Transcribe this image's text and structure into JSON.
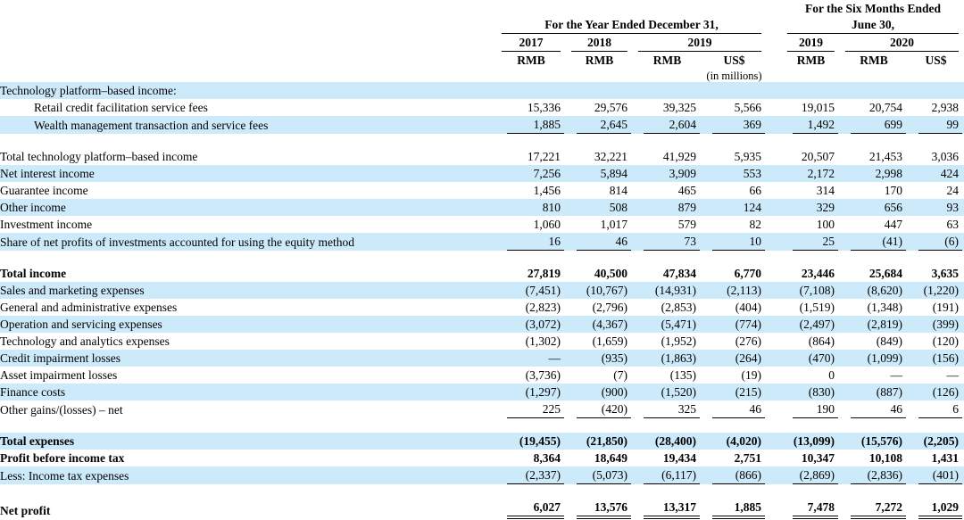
{
  "colors": {
    "stripe": "#cdeafb",
    "text": "#000000",
    "rule": "#000000"
  },
  "header": {
    "six_months_line1": "For the Six Months Ended",
    "six_months_line2": "June 30,",
    "year_end": "For the Year Ended December 31,",
    "years": [
      "2017",
      "2018",
      "2019",
      "2019",
      "2020"
    ],
    "currency": [
      "RMB",
      "RMB",
      "RMB",
      "US$",
      "RMB",
      "RMB",
      "US$"
    ],
    "unit_note": "(in millions)"
  },
  "table": {
    "rows": [
      {
        "label": "Technology platform–based income:",
        "values": [
          "",
          "",
          "",
          "",
          "",
          "",
          ""
        ],
        "indent": false,
        "bold": false,
        "shaded": true,
        "underline": "none"
      },
      {
        "label": "Retail credit facilitation service fees",
        "values": [
          "15,336",
          "29,576",
          "39,325",
          "5,566",
          "19,015",
          "20,754",
          "2,938"
        ],
        "indent": true,
        "bold": false,
        "shaded": false,
        "underline": "none"
      },
      {
        "label": "Wealth management transaction and service fees",
        "values": [
          "1,885",
          "2,645",
          "2,604",
          "369",
          "1,492",
          "699",
          "99"
        ],
        "indent": true,
        "bold": false,
        "shaded": true,
        "underline": "single"
      },
      {
        "spacer": true
      },
      {
        "label": "Total technology platform–based income",
        "values": [
          "17,221",
          "32,221",
          "41,929",
          "5,935",
          "20,507",
          "21,453",
          "3,036"
        ],
        "indent": false,
        "bold": false,
        "shaded": false,
        "underline": "none"
      },
      {
        "label": "Net interest income",
        "values": [
          "7,256",
          "5,894",
          "3,909",
          "553",
          "2,172",
          "2,998",
          "424"
        ],
        "indent": false,
        "bold": false,
        "shaded": true,
        "underline": "none"
      },
      {
        "label": "Guarantee income",
        "values": [
          "1,456",
          "814",
          "465",
          "66",
          "314",
          "170",
          "24"
        ],
        "indent": false,
        "bold": false,
        "shaded": false,
        "underline": "none"
      },
      {
        "label": "Other income",
        "values": [
          "810",
          "508",
          "879",
          "124",
          "329",
          "656",
          "93"
        ],
        "indent": false,
        "bold": false,
        "shaded": true,
        "underline": "none"
      },
      {
        "label": "Investment income",
        "values": [
          "1,060",
          "1,017",
          "579",
          "82",
          "100",
          "447",
          "63"
        ],
        "indent": false,
        "bold": false,
        "shaded": false,
        "underline": "none"
      },
      {
        "label": "Share of net profits of investments accounted for using the equity method",
        "values": [
          "16",
          "46",
          "73",
          "10",
          "25",
          "(41)",
          "(6)"
        ],
        "indent": false,
        "bold": false,
        "shaded": true,
        "underline": "single"
      },
      {
        "spacer": true
      },
      {
        "label": "Total income",
        "values": [
          "27,819",
          "40,500",
          "47,834",
          "6,770",
          "23,446",
          "25,684",
          "3,635"
        ],
        "indent": false,
        "bold": true,
        "shaded": false,
        "underline": "none"
      },
      {
        "label": "Sales and marketing expenses",
        "values": [
          "(7,451)",
          "(10,767)",
          "(14,931)",
          "(2,113)",
          "(7,108)",
          "(8,620)",
          "(1,220)"
        ],
        "indent": false,
        "bold": false,
        "shaded": true,
        "underline": "none"
      },
      {
        "label": "General and administrative expenses",
        "values": [
          "(2,823)",
          "(2,796)",
          "(2,853)",
          "(404)",
          "(1,519)",
          "(1,348)",
          "(191)"
        ],
        "indent": false,
        "bold": false,
        "shaded": false,
        "underline": "none"
      },
      {
        "label": "Operation and servicing expenses",
        "values": [
          "(3,072)",
          "(4,367)",
          "(5,471)",
          "(774)",
          "(2,497)",
          "(2,819)",
          "(399)"
        ],
        "indent": false,
        "bold": false,
        "shaded": true,
        "underline": "none"
      },
      {
        "label": "Technology and analytics expenses",
        "values": [
          "(1,302)",
          "(1,659)",
          "(1,952)",
          "(276)",
          "(864)",
          "(849)",
          "(120)"
        ],
        "indent": false,
        "bold": false,
        "shaded": false,
        "underline": "none"
      },
      {
        "label": "Credit impairment losses",
        "values": [
          "—",
          "(935)",
          "(1,863)",
          "(264)",
          "(470)",
          "(1,099)",
          "(156)"
        ],
        "indent": false,
        "bold": false,
        "shaded": true,
        "underline": "none"
      },
      {
        "label": "Asset impairment losses",
        "values": [
          "(3,736)",
          "(7)",
          "(135)",
          "(19)",
          "0",
          "—",
          "—"
        ],
        "indent": false,
        "bold": false,
        "shaded": false,
        "underline": "none"
      },
      {
        "label": "Finance costs",
        "values": [
          "(1,297)",
          "(900)",
          "(1,520)",
          "(215)",
          "(830)",
          "(887)",
          "(126)"
        ],
        "indent": false,
        "bold": false,
        "shaded": true,
        "underline": "none"
      },
      {
        "label": "Other gains/(losses) – net",
        "values": [
          "225",
          "(420)",
          "325",
          "46",
          "190",
          "46",
          "6"
        ],
        "indent": false,
        "bold": false,
        "shaded": false,
        "underline": "single"
      },
      {
        "spacer": true
      },
      {
        "label": "Total expenses",
        "values": [
          "(19,455)",
          "(21,850)",
          "(28,400)",
          "(4,020)",
          "(13,099)",
          "(15,576)",
          "(2,205)"
        ],
        "indent": false,
        "bold": true,
        "shaded": true,
        "underline": "none"
      },
      {
        "label": "Profit before income tax",
        "values": [
          "8,364",
          "18,649",
          "19,434",
          "2,751",
          "10,347",
          "10,108",
          "1,431"
        ],
        "indent": false,
        "bold": true,
        "shaded": false,
        "underline": "none"
      },
      {
        "label": "Less: Income tax expenses",
        "values": [
          "(2,337)",
          "(5,073)",
          "(6,117)",
          "(866)",
          "(2,869)",
          "(2,836)",
          "(401)"
        ],
        "indent": false,
        "bold": false,
        "shaded": true,
        "underline": "single"
      },
      {
        "spacer": true
      },
      {
        "label": "Net profit",
        "values": [
          "6,027",
          "13,576",
          "13,317",
          "1,885",
          "7,478",
          "7,272",
          "1,029"
        ],
        "indent": false,
        "bold": true,
        "shaded": false,
        "underline": "double"
      }
    ]
  }
}
